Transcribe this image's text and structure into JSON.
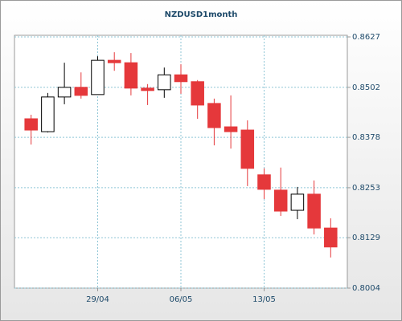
{
  "chart_data": {
    "type": "candlestick",
    "title": "NZDUSD1month",
    "categories": [
      null,
      null,
      null,
      null,
      "29/04",
      null,
      null,
      null,
      null,
      "06/05",
      null,
      null,
      null,
      null,
      "13/05",
      null,
      null,
      null,
      null
    ],
    "open": [
      0.8424,
      0.8392,
      0.8478,
      0.8502,
      0.8484,
      0.8569,
      0.8563,
      0.85,
      0.8496,
      0.8533,
      0.8516,
      0.8462,
      0.8404,
      0.8396,
      0.8285,
      0.8247,
      0.8197,
      0.8237,
      0.8153
    ],
    "high": [
      0.8434,
      0.8488,
      0.8563,
      0.8539,
      0.8579,
      0.8589,
      0.8587,
      0.851,
      0.8551,
      0.8559,
      0.852,
      0.8474,
      0.8482,
      0.842,
      0.8301,
      0.8303,
      0.8255,
      0.8271,
      0.8177
    ],
    "low": [
      0.836,
      0.839,
      0.846,
      0.8474,
      0.8484,
      0.8543,
      0.8482,
      0.8458,
      0.8476,
      0.8486,
      0.8424,
      0.8358,
      0.835,
      0.8257,
      0.8225,
      0.8183,
      0.8175,
      0.8137,
      0.808
    ],
    "close": [
      0.8396,
      0.8478,
      0.8502,
      0.8482,
      0.8569,
      0.8563,
      0.85,
      0.8494,
      0.8533,
      0.8516,
      0.8458,
      0.8402,
      0.8392,
      0.8301,
      0.8249,
      0.8195,
      0.8237,
      0.8153,
      0.8106
    ],
    "up_color": "#ffffff",
    "down_color": "#e5383b",
    "ylim": [
      0.8004,
      0.8631
    ],
    "yticks": [
      0.8004,
      0.8129,
      0.8253,
      0.8378,
      0.8502,
      0.8627
    ],
    "grid": true
  }
}
